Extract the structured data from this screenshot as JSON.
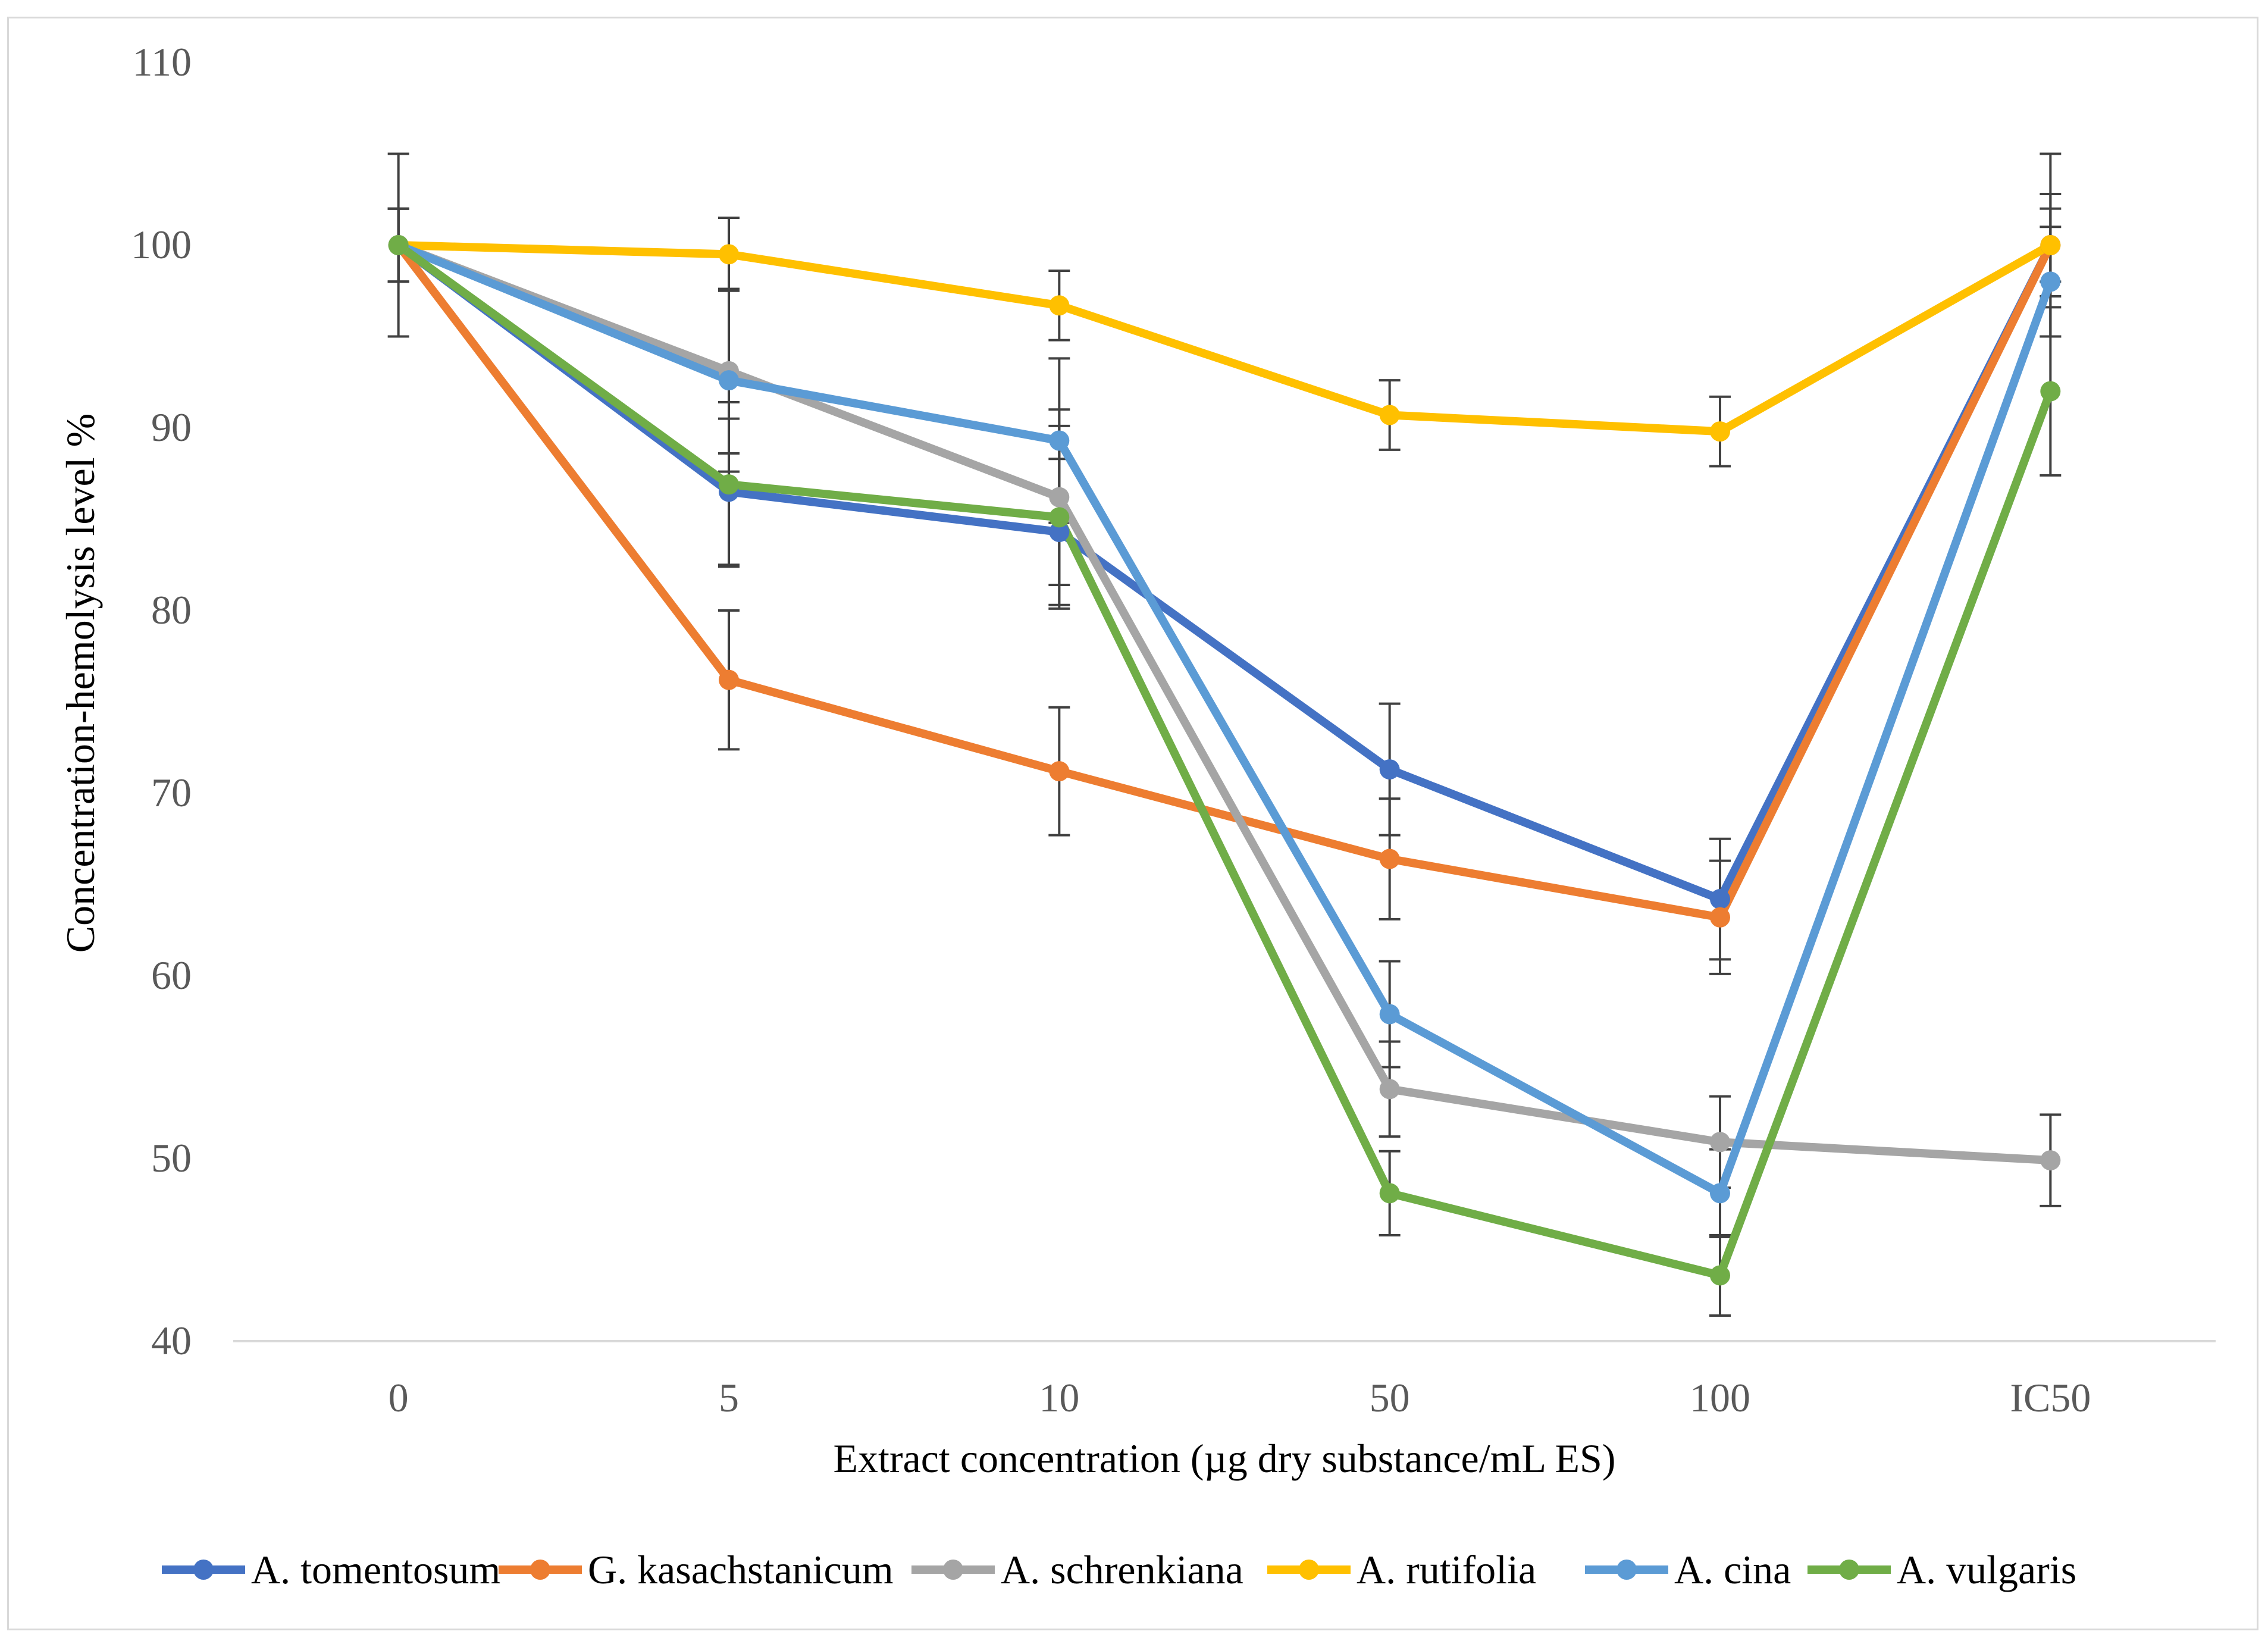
{
  "chart_data": {
    "type": "line",
    "title": "",
    "xlabel": "Extract concentration (µg dry substance/mL ES)",
    "ylabel": "Concentration-hemolysis level %",
    "categories": [
      "0",
      "5",
      "10",
      "50",
      "100",
      "IC50"
    ],
    "ylim": [
      40,
      110
    ],
    "yticks": [
      "40",
      "50",
      "60",
      "70",
      "80",
      "90",
      "100",
      "110"
    ],
    "grid": false,
    "legend_position": "bottom",
    "series": [
      {
        "name": "A. tomentosum",
        "color": "#4472c4",
        "values": [
          100,
          86.5,
          84.3,
          71.3,
          64.2,
          100
        ],
        "errors": [
          5,
          4,
          4,
          3.6,
          3.3,
          2.8
        ]
      },
      {
        "name": "G. kasachstanicum",
        "color": "#ed7d31",
        "values": [
          100,
          76.2,
          71.2,
          66.4,
          63.2,
          100
        ],
        "errors": [
          2,
          3.8,
          3.5,
          3.3,
          3.1,
          5
        ]
      },
      {
        "name": "A. schrenkiana",
        "color": "#a5a5a5",
        "values": [
          100,
          93.1,
          86.2,
          53.8,
          50.9,
          49.9
        ],
        "errors": [
          2,
          4.5,
          4.8,
          2.6,
          2.5,
          2.5
        ]
      },
      {
        "name": "A. rutifolia",
        "color": "#ffc000",
        "values": [
          100,
          99.5,
          96.7,
          90.7,
          89.8,
          100
        ],
        "errors": [
          2,
          2,
          1.9,
          1.9,
          1.9,
          2
        ]
      },
      {
        "name": "A. cina",
        "color": "#5b9bd5",
        "values": [
          100,
          92.6,
          89.3,
          57.9,
          48.1,
          98
        ],
        "errors": [
          2,
          5,
          4.5,
          2.9,
          2.4,
          3
        ]
      },
      {
        "name": "A. vulgaris",
        "color": "#70ad47",
        "values": [
          100,
          86.9,
          85.1,
          48.1,
          43.6,
          92
        ],
        "errors": [
          2,
          4.5,
          5,
          2.3,
          2.2,
          4.6
        ]
      }
    ]
  }
}
